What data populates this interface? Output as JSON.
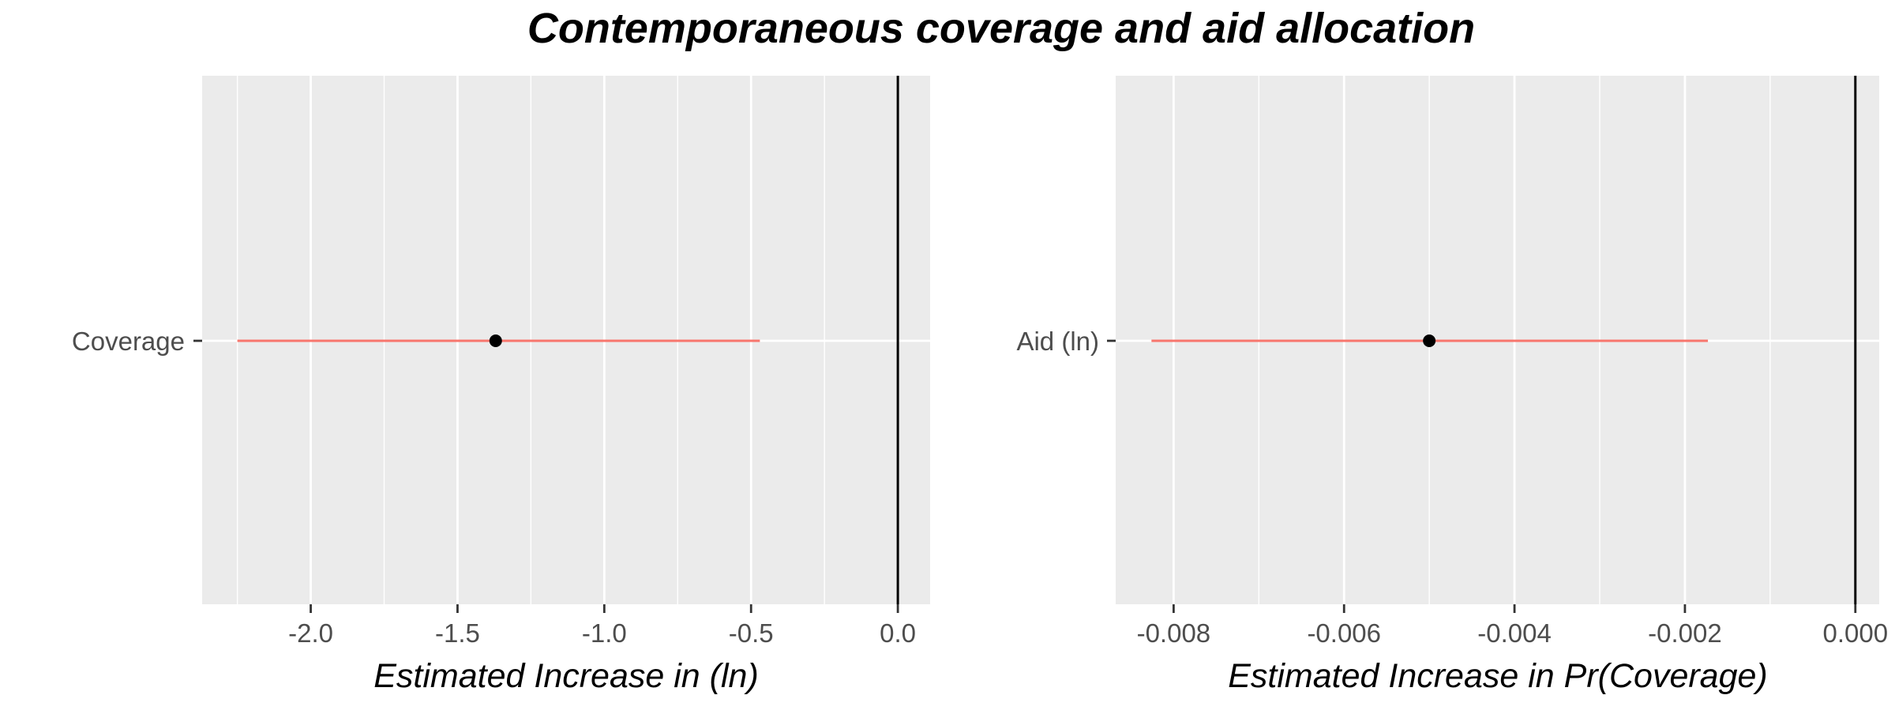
{
  "title": "Contemporaneous coverage and aid allocation",
  "chart_data": [
    {
      "type": "scatter",
      "variant": "coefficient-plot",
      "category": "Coverage",
      "estimate": -1.37,
      "ci": [
        -2.25,
        -0.47
      ],
      "xlabel": "Estimated Increase in (ln)",
      "ylabel": "",
      "xlim": [
        -2.37,
        0.11
      ],
      "xticks": [
        -2.0,
        -1.5,
        -1.0,
        -0.5,
        0.0
      ],
      "xtick_labels": [
        "-2.0",
        "-1.5",
        "-1.0",
        "-0.5",
        "0.0"
      ],
      "reference_line": 0,
      "grid": true
    },
    {
      "type": "scatter",
      "variant": "coefficient-plot",
      "category": "Aid (ln)",
      "estimate": -0.005,
      "ci": [
        -0.00826,
        -0.00173
      ],
      "xlabel": "Estimated Increase in Pr(Coverage)",
      "ylabel": "",
      "xlim": [
        -0.00868,
        0.00028
      ],
      "xticks": [
        -0.008,
        -0.006,
        -0.004,
        -0.002,
        0.0
      ],
      "xtick_labels": [
        "-0.008",
        "-0.006",
        "-0.004",
        "-0.002",
        "0.000"
      ],
      "reference_line": 0,
      "grid": true
    }
  ],
  "colors": {
    "panel_background": "#ebebeb",
    "grid_major": "#ffffff",
    "interval_line": "#f8766d",
    "point": "#000000",
    "reference_line": "#000000",
    "tick_text": "#4d4d4d"
  }
}
